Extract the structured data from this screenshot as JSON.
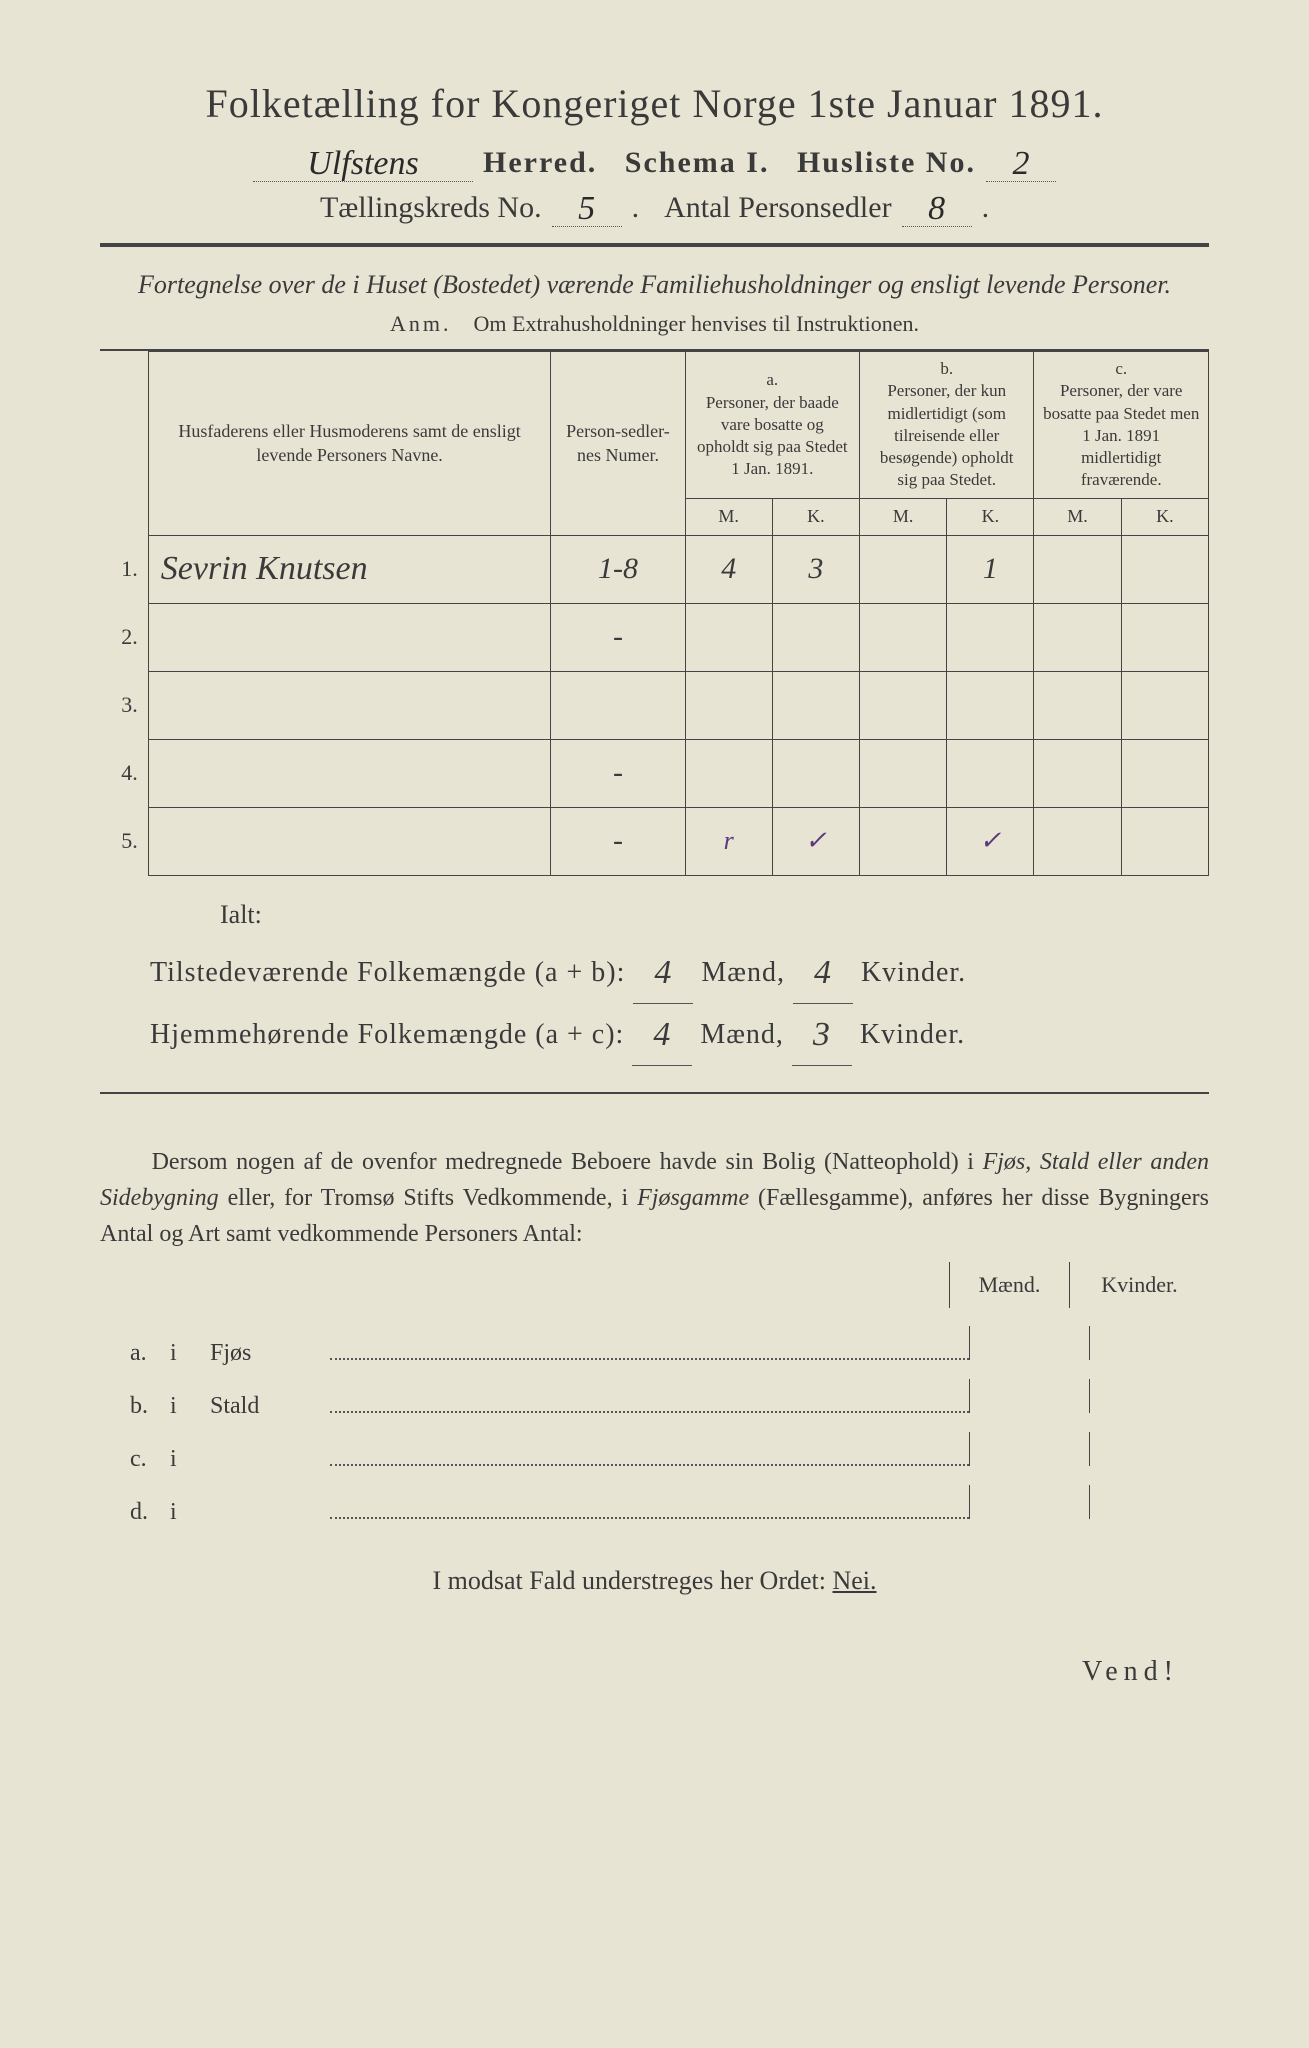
{
  "title": "Folketælling for Kongeriget Norge 1ste Januar 1891.",
  "header": {
    "herred_value": "Ulfstens",
    "herred_label": "Herred.",
    "schema_label": "Schema I.",
    "husliste_label": "Husliste No.",
    "husliste_value": "2",
    "kreds_label": "Tællingskreds No.",
    "kreds_value": "5",
    "antal_label": "Antal Personsedler",
    "antal_value": "8"
  },
  "subtitle": "Fortegnelse over de i Huset (Bostedet) værende Familiehusholdninger og ensligt levende Personer.",
  "anm_label": "Anm.",
  "anm_text": "Om Extrahusholdninger henvises til Instruktionen.",
  "columns": {
    "names": "Husfaderens eller Husmoderens samt de ensligt levende Personers Navne.",
    "person_num": "Person-sedler-nes Numer.",
    "a_label": "a.",
    "a_text": "Personer, der baade vare bosatte og opholdt sig paa Stedet 1 Jan. 1891.",
    "b_label": "b.",
    "b_text": "Personer, der kun midlertidigt (som tilreisende eller besøgende) opholdt sig paa Stedet.",
    "c_label": "c.",
    "c_text": "Personer, der vare bosatte paa Stedet men 1 Jan. 1891 midlertidigt fraværende.",
    "m": "M.",
    "k": "K."
  },
  "rows": [
    {
      "n": "1.",
      "name": "Sevrin Knutsen",
      "pnum": "1-8",
      "am": "4",
      "ak": "3",
      "bm": "",
      "bk": "1",
      "cm": "",
      "ck": ""
    },
    {
      "n": "2.",
      "name": "",
      "pnum": "-",
      "am": "",
      "ak": "",
      "bm": "",
      "bk": "",
      "cm": "",
      "ck": ""
    },
    {
      "n": "3.",
      "name": "",
      "pnum": "",
      "am": "",
      "ak": "",
      "bm": "",
      "bk": "",
      "cm": "",
      "ck": ""
    },
    {
      "n": "4.",
      "name": "",
      "pnum": "-",
      "am": "",
      "ak": "",
      "bm": "",
      "bk": "",
      "cm": "",
      "ck": ""
    },
    {
      "n": "5.",
      "name": "",
      "pnum": "-",
      "am": "",
      "ak": "",
      "bm": "",
      "bk": "",
      "cm": "",
      "ck": ""
    }
  ],
  "ticks": {
    "am": "r",
    "ak": "✓",
    "bk": "✓"
  },
  "ialt": "Ialt:",
  "totals": {
    "line1_label": "Tilstedeværende Folkemængde (a + b):",
    "line1_m": "4",
    "line1_k": "4",
    "line2_label": "Hjemmehørende Folkemængde (a + c):",
    "line2_m": "4",
    "line2_k": "3",
    "maend": "Mænd,",
    "kvinder": "Kvinder."
  },
  "para": "Dersom nogen af de ovenfor medregnede Beboere havde sin Bolig (Natteophold) i Fjøs, Stald eller anden Sidebygning eller, for Tromsø Stifts Vedkommende, i Fjøsgamme (Fællesgamme), anføres her disse Bygningers Antal og Art samt vedkommende Personers Antal:",
  "mk": {
    "m": "Mænd.",
    "k": "Kvinder."
  },
  "abcd": [
    {
      "l": "a.",
      "i": "i",
      "w": "Fjøs"
    },
    {
      "l": "b.",
      "i": "i",
      "w": "Stald"
    },
    {
      "l": "c.",
      "i": "i",
      "w": ""
    },
    {
      "l": "d.",
      "i": "i",
      "w": ""
    }
  ],
  "nei_text": "I modsat Fald understreges her Ordet:",
  "nei_word": "Nei.",
  "vend": "Vend!",
  "colors": {
    "page_bg": "#e8e4d4",
    "text": "#3a3a3a",
    "rule": "#444444",
    "handwriting": "#2a2a2a",
    "tick": "#5a3a7a"
  }
}
